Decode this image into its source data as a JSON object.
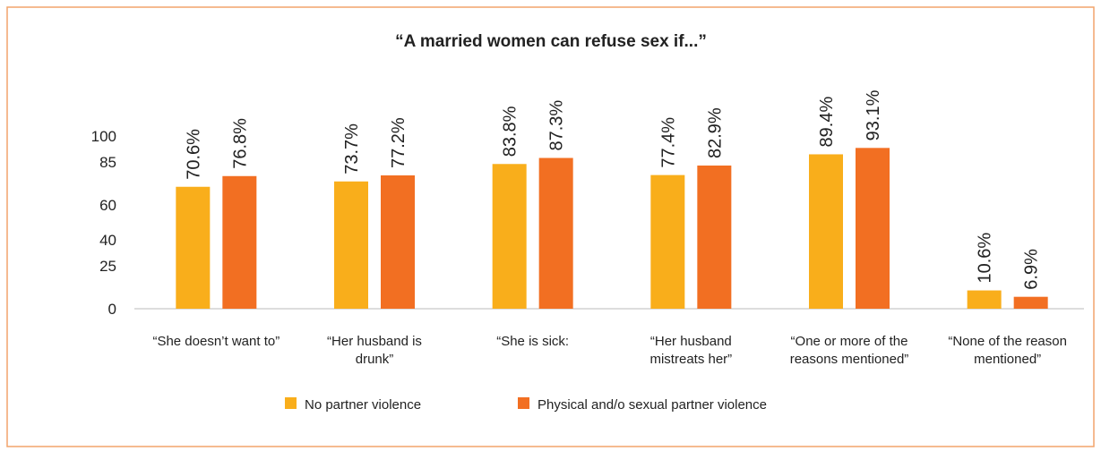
{
  "chart_data": {
    "type": "bar",
    "title": "“A married women can refuse sex if...”",
    "categories": [
      "“She doesn’t want to”",
      "“Her husband is drunk”",
      "“She is sick:",
      "“Her husband mistreats her”",
      "“One or more of the reasons mentioned”",
      "“None of the reason mentioned”"
    ],
    "series": [
      {
        "name": "No partner violence",
        "color": "#f9ae1b",
        "values": [
          70.6,
          73.7,
          83.8,
          77.4,
          89.4,
          10.6
        ],
        "value_labels": [
          "70.6%",
          "73.7%",
          "83.8%",
          "77.4%",
          "89.4%",
          "10.6%"
        ]
      },
      {
        "name": "Physical and/o sexual partner violence",
        "color": "#f26f22",
        "values": [
          76.8,
          77.2,
          87.3,
          82.9,
          93.1,
          6.9
        ],
        "value_labels": [
          "76.8%",
          "77.2%",
          "87.3%",
          "82.9%",
          "93.1%",
          "6.9%"
        ]
      }
    ],
    "ylim": [
      0,
      100
    ],
    "yticks": [
      0,
      25,
      40,
      60,
      85,
      100
    ],
    "grid": false
  }
}
